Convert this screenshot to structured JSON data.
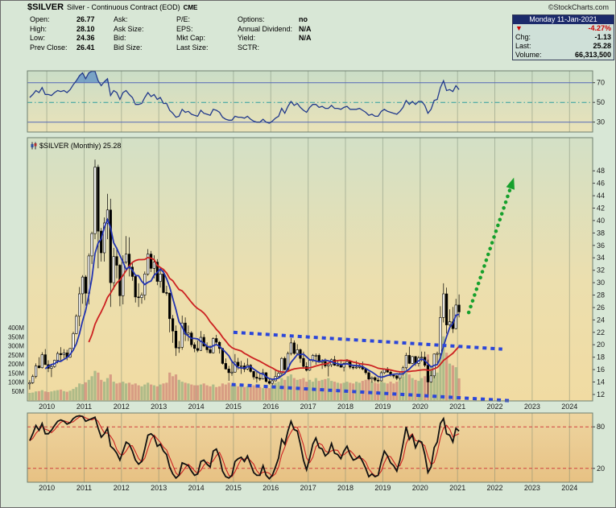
{
  "header": {
    "symbol": "$SILVER",
    "title": "Silver - Continuous Contract (EOD)",
    "exchange": "CME",
    "credit": "©StockCharts.com"
  },
  "quote_panel": {
    "columns": [
      {
        "rows": [
          {
            "label": "Open:",
            "value": "26.77"
          },
          {
            "label": "High:",
            "value": "28.10"
          },
          {
            "label": "Low:",
            "value": "24.36"
          },
          {
            "label": "Prev Close:",
            "value": "26.41"
          }
        ]
      },
      {
        "rows": [
          {
            "label": "Ask:",
            "value": ""
          },
          {
            "label": "Ask Size:",
            "value": ""
          },
          {
            "label": "Bid:",
            "value": ""
          },
          {
            "label": "Bid Size:",
            "value": ""
          }
        ]
      },
      {
        "rows": [
          {
            "label": "P/E:",
            "value": ""
          },
          {
            "label": "EPS:",
            "value": ""
          },
          {
            "label": "Mkt Cap:",
            "value": ""
          },
          {
            "label": "Last Size:",
            "value": ""
          }
        ]
      },
      {
        "rows": [
          {
            "label": "Options:",
            "value": "no"
          },
          {
            "label": "Annual Dividend:",
            "value": "N/A"
          },
          {
            "label": "Yield:",
            "value": "N/A"
          },
          {
            "label": "SCTR:",
            "value": ""
          }
        ]
      }
    ],
    "date": "Monday 11-Jan-2021",
    "direction_icon": "▼",
    "change_pct": "-4.27%",
    "chg_label": "Chg:",
    "chg_value": "-1.13",
    "last_label": "Last:",
    "last_value": "25.28",
    "volume_label": "Volume:",
    "volume_value": "66,313,500",
    "down_color": "#cc0000"
  },
  "chart_data": {
    "type": "candlestick",
    "symbol_label": "$SILVER (Monthly) 25.28",
    "months_start": "2009-07",
    "x_axis": {
      "tick_years": [
        2010,
        2011,
        2012,
        2013,
        2014,
        2015,
        2016,
        2017,
        2018,
        2019,
        2020,
        2021,
        2022,
        2023,
        2024
      ]
    },
    "price_axis": {
      "min": 12,
      "max": 48,
      "step": 2
    },
    "volume_axis_labels": [
      "400M",
      "350M",
      "300M",
      "250M",
      "200M",
      "150M",
      "100M",
      "50M"
    ],
    "ohlc": [
      [
        13.7,
        14.3,
        12.8,
        13.9
      ],
      [
        13.9,
        15.2,
        13.7,
        14.9
      ],
      [
        14.9,
        17.0,
        14.6,
        16.6
      ],
      [
        16.6,
        18.0,
        16.2,
        16.3
      ],
      [
        16.3,
        18.8,
        16.2,
        18.4
      ],
      [
        18.4,
        19.3,
        16.8,
        16.8
      ],
      [
        16.8,
        17.5,
        15.6,
        16.2
      ],
      [
        16.2,
        16.7,
        14.8,
        16.5
      ],
      [
        16.5,
        17.6,
        16.3,
        17.5
      ],
      [
        17.5,
        18.9,
        17.0,
        18.6
      ],
      [
        18.6,
        19.6,
        17.4,
        18.4
      ],
      [
        18.4,
        19.3,
        17.8,
        18.7
      ],
      [
        18.7,
        19.2,
        17.5,
        18.0
      ],
      [
        18.0,
        19.5,
        17.9,
        19.4
      ],
      [
        19.4,
        22.1,
        19.0,
        21.8
      ],
      [
        21.8,
        24.9,
        21.7,
        24.6
      ],
      [
        24.6,
        29.3,
        23.0,
        28.2
      ],
      [
        28.2,
        31.2,
        26.6,
        30.9
      ],
      [
        30.9,
        31.2,
        26.3,
        28.3
      ],
      [
        28.3,
        34.7,
        26.5,
        34.3
      ],
      [
        34.3,
        38.2,
        33.0,
        37.9
      ],
      [
        37.9,
        49.8,
        37.0,
        48.6
      ],
      [
        48.6,
        49.0,
        32.3,
        38.3
      ],
      [
        38.3,
        38.8,
        33.4,
        34.8
      ],
      [
        34.8,
        40.5,
        33.4,
        39.6
      ],
      [
        39.6,
        44.3,
        37.0,
        41.7
      ],
      [
        41.7,
        43.5,
        26.1,
        30.0
      ],
      [
        30.0,
        35.6,
        28.9,
        34.2
      ],
      [
        34.2,
        35.7,
        30.7,
        32.8
      ],
      [
        32.8,
        33.0,
        26.2,
        27.9
      ],
      [
        27.9,
        34.4,
        26.5,
        33.3
      ],
      [
        33.3,
        37.5,
        33.0,
        34.6
      ],
      [
        34.6,
        37.3,
        31.0,
        32.5
      ],
      [
        32.5,
        33.3,
        30.3,
        31.0
      ],
      [
        31.0,
        31.1,
        26.8,
        27.7
      ],
      [
        27.7,
        29.9,
        26.1,
        27.6
      ],
      [
        27.6,
        28.4,
        26.6,
        28.0
      ],
      [
        28.0,
        31.8,
        27.2,
        31.4
      ],
      [
        31.4,
        35.4,
        31.1,
        34.6
      ],
      [
        34.6,
        35.1,
        31.7,
        32.3
      ],
      [
        32.3,
        34.4,
        30.7,
        33.3
      ],
      [
        33.3,
        33.8,
        29.6,
        30.2
      ],
      [
        30.2,
        32.5,
        29.2,
        31.4
      ],
      [
        31.4,
        32.1,
        28.3,
        28.4
      ],
      [
        28.4,
        29.5,
        27.9,
        28.3
      ],
      [
        28.3,
        28.4,
        22.0,
        24.2
      ],
      [
        24.2,
        24.8,
        20.3,
        22.2
      ],
      [
        22.2,
        23.1,
        18.2,
        19.5
      ],
      [
        19.5,
        20.6,
        18.7,
        19.6
      ],
      [
        19.6,
        24.7,
        19.2,
        23.5
      ],
      [
        23.5,
        24.4,
        20.6,
        21.7
      ],
      [
        21.7,
        23.1,
        20.6,
        21.9
      ],
      [
        21.9,
        22.2,
        19.6,
        20.0
      ],
      [
        20.0,
        20.4,
        18.8,
        19.4
      ],
      [
        19.4,
        20.7,
        18.8,
        19.1
      ],
      [
        19.1,
        22.2,
        19.0,
        21.2
      ],
      [
        21.2,
        21.7,
        19.6,
        19.8
      ],
      [
        19.8,
        20.4,
        18.7,
        19.2
      ],
      [
        19.2,
        19.9,
        18.6,
        18.7
      ],
      [
        18.7,
        21.2,
        18.6,
        21.0
      ],
      [
        21.0,
        21.6,
        20.1,
        20.4
      ],
      [
        20.4,
        20.6,
        18.6,
        19.4
      ],
      [
        19.4,
        19.5,
        16.8,
        17.0
      ],
      [
        17.0,
        17.8,
        16.0,
        16.1
      ],
      [
        16.1,
        16.6,
        14.2,
        15.5
      ],
      [
        15.5,
        17.3,
        15.0,
        15.6
      ],
      [
        15.6,
        18.5,
        15.5,
        17.2
      ],
      [
        17.2,
        17.9,
        16.0,
        16.6
      ],
      [
        16.6,
        17.4,
        15.3,
        16.6
      ],
      [
        16.6,
        17.1,
        15.6,
        16.1
      ],
      [
        16.1,
        17.8,
        15.9,
        16.7
      ],
      [
        16.7,
        16.9,
        15.5,
        15.7
      ],
      [
        15.7,
        15.8,
        14.4,
        14.8
      ],
      [
        14.8,
        15.7,
        13.9,
        14.6
      ],
      [
        14.6,
        15.3,
        14.2,
        14.5
      ],
      [
        14.5,
        16.1,
        14.4,
        15.5
      ],
      [
        15.5,
        15.6,
        13.9,
        14.1
      ],
      [
        14.1,
        14.6,
        13.6,
        13.8
      ],
      [
        13.8,
        14.4,
        13.5,
        14.2
      ],
      [
        14.2,
        15.9,
        14.1,
        14.9
      ],
      [
        14.9,
        15.9,
        14.7,
        15.4
      ],
      [
        15.4,
        18.0,
        14.9,
        17.8
      ],
      [
        17.8,
        18.1,
        15.9,
        16.0
      ],
      [
        16.0,
        18.9,
        15.9,
        18.6
      ],
      [
        18.6,
        21.1,
        18.3,
        20.3
      ],
      [
        20.3,
        20.7,
        18.4,
        18.6
      ],
      [
        18.6,
        20.1,
        18.3,
        19.2
      ],
      [
        19.2,
        19.4,
        17.1,
        17.8
      ],
      [
        17.8,
        18.9,
        16.2,
        16.5
      ],
      [
        16.5,
        17.2,
        15.7,
        15.9
      ],
      [
        15.9,
        17.7,
        15.8,
        17.5
      ],
      [
        17.5,
        18.5,
        17.2,
        18.3
      ],
      [
        18.3,
        18.6,
        16.8,
        18.3
      ],
      [
        18.3,
        18.6,
        17.1,
        17.2
      ],
      [
        17.2,
        17.7,
        16.1,
        17.3
      ],
      [
        17.3,
        17.8,
        16.3,
        16.6
      ],
      [
        16.6,
        16.9,
        14.9,
        16.8
      ],
      [
        16.8,
        17.8,
        16.4,
        17.6
      ],
      [
        17.6,
        18.2,
        16.6,
        16.7
      ],
      [
        16.7,
        17.5,
        16.5,
        16.7
      ],
      [
        16.7,
        17.4,
        16.3,
        16.4
      ],
      [
        16.4,
        17.2,
        15.7,
        17.0
      ],
      [
        17.0,
        17.7,
        16.8,
        17.3
      ],
      [
        17.3,
        17.4,
        16.1,
        16.4
      ],
      [
        16.4,
        16.8,
        16.0,
        16.3
      ],
      [
        16.3,
        17.4,
        16.1,
        16.4
      ],
      [
        16.4,
        16.9,
        16.1,
        16.5
      ],
      [
        16.5,
        17.3,
        15.9,
        16.1
      ],
      [
        16.1,
        16.2,
        15.2,
        15.5
      ],
      [
        15.5,
        15.7,
        14.3,
        14.5
      ],
      [
        14.5,
        14.9,
        13.9,
        14.7
      ],
      [
        14.7,
        14.9,
        14.0,
        14.3
      ],
      [
        14.3,
        14.7,
        13.9,
        14.2
      ],
      [
        14.2,
        15.8,
        14.1,
        15.5
      ],
      [
        15.5,
        16.2,
        15.3,
        16.1
      ],
      [
        16.1,
        16.4,
        15.5,
        15.6
      ],
      [
        15.6,
        15.9,
        14.9,
        15.1
      ],
      [
        15.1,
        15.3,
        14.6,
        15.0
      ],
      [
        15.0,
        15.1,
        14.3,
        14.6
      ],
      [
        14.6,
        15.5,
        14.3,
        15.3
      ],
      [
        15.3,
        16.6,
        15.0,
        16.3
      ],
      [
        16.3,
        18.7,
        16.0,
        18.3
      ],
      [
        18.3,
        19.7,
        16.9,
        17.0
      ],
      [
        17.0,
        18.2,
        16.9,
        18.1
      ],
      [
        18.1,
        18.2,
        16.6,
        17.0
      ],
      [
        17.0,
        18.2,
        16.5,
        17.9
      ],
      [
        17.9,
        18.9,
        17.3,
        18.0
      ],
      [
        18.0,
        18.9,
        16.4,
        16.7
      ],
      [
        16.7,
        17.6,
        11.6,
        14.0
      ],
      [
        14.0,
        15.8,
        13.9,
        15.0
      ],
      [
        15.0,
        18.6,
        14.6,
        18.5
      ],
      [
        18.5,
        18.9,
        17.1,
        18.6
      ],
      [
        18.6,
        26.2,
        17.8,
        24.4
      ],
      [
        24.4,
        29.9,
        23.6,
        28.2
      ],
      [
        28.2,
        29.2,
        21.8,
        23.2
      ],
      [
        23.2,
        25.7,
        22.6,
        23.7
      ],
      [
        23.7,
        26.1,
        21.9,
        22.6
      ],
      [
        22.6,
        27.4,
        22.5,
        26.4
      ],
      [
        26.4,
        28.1,
        24.4,
        25.3
      ]
    ],
    "volumes_millions": [
      40,
      42,
      48,
      50,
      55,
      48,
      45,
      48,
      52,
      55,
      58,
      50,
      46,
      52,
      62,
      72,
      92,
      88,
      98,
      112,
      132,
      162,
      152,
      112,
      102,
      122,
      142,
      102,
      92,
      96,
      102,
      92,
      96,
      86,
      92,
      82,
      76,
      86,
      96,
      86,
      82,
      76,
      86,
      92,
      96,
      152,
      132,
      142,
      112,
      102,
      96,
      92,
      86,
      82,
      82,
      86,
      92,
      82,
      76,
      86,
      72,
      76,
      92,
      86,
      96,
      82,
      86,
      76,
      82,
      72,
      76,
      72,
      82,
      86,
      72,
      66,
      72,
      66,
      82,
      96,
      102,
      122,
      112,
      132,
      142,
      122,
      112,
      116,
      122,
      102,
      112,
      102,
      122,
      106,
      112,
      116,
      122,
      106,
      102,
      96,
      92,
      96,
      102,
      96,
      92,
      102,
      96,
      106,
      112,
      116,
      102,
      96,
      92,
      102,
      96,
      92,
      102,
      92,
      102,
      112,
      132,
      152,
      142,
      122,
      112,
      106,
      122,
      132,
      252,
      182,
      162,
      152,
      282,
      352,
      262,
      202,
      192,
      182,
      120
    ],
    "overlays": {
      "fast_ma": {
        "period": 6,
        "color": "#2233b0"
      },
      "slow_ma": {
        "period": 20,
        "color": "#cc2222"
      }
    },
    "indicators": {
      "rsi": {
        "levels": [
          70,
          50,
          30
        ],
        "line_color": "#223a8c",
        "band_fill": "#5e8fc4",
        "values": [
          55,
          58,
          62,
          60,
          65,
          58,
          58,
          57,
          60,
          62,
          61,
          62,
          60,
          63,
          68,
          72,
          77,
          80,
          74,
          80,
          82,
          87,
          72,
          67,
          71,
          74,
          57,
          62,
          60,
          53,
          60,
          62,
          58,
          55,
          48,
          48,
          49,
          55,
          60,
          56,
          58,
          53,
          55,
          49,
          49,
          42,
          39,
          35,
          36,
          43,
          40,
          41,
          38,
          37,
          36,
          42,
          39,
          38,
          37,
          43,
          42,
          40,
          35,
          33,
          32,
          32,
          36,
          35,
          35,
          34,
          36,
          33,
          31,
          30,
          30,
          33,
          30,
          29,
          31,
          34,
          36,
          44,
          39,
          46,
          51,
          47,
          49,
          45,
          42,
          40,
          45,
          48,
          48,
          45,
          46,
          44,
          44,
          47,
          44,
          44,
          43,
          45,
          46,
          43,
          43,
          43,
          44,
          42,
          40,
          37,
          38,
          36,
          36,
          41,
          43,
          41,
          40,
          39,
          38,
          41,
          45,
          52,
          48,
          51,
          48,
          51,
          51,
          47,
          39,
          43,
          52,
          53,
          65,
          72,
          62,
          63,
          61,
          67,
          63
        ]
      },
      "stoch": {
        "levels": [
          80,
          20
        ],
        "k_color": "#111111",
        "d_color": "#cc2222",
        "level_color": "#d04040",
        "k": [
          60,
          70,
          82,
          75,
          85,
          70,
          70,
          75,
          82,
          88,
          90,
          88,
          84,
          86,
          92,
          95,
          96,
          95,
          88,
          90,
          92,
          94,
          78,
          65,
          70,
          78,
          52,
          48,
          42,
          32,
          45,
          58,
          55,
          45,
          32,
          26,
          30,
          48,
          68,
          70,
          66,
          52,
          55,
          45,
          40,
          22,
          12,
          6,
          10,
          28,
          26,
          24,
          16,
          10,
          12,
          30,
          32,
          26,
          22,
          45,
          48,
          36,
          16,
          8,
          6,
          10,
          30,
          34,
          36,
          30,
          38,
          26,
          14,
          10,
          10,
          24,
          10,
          5,
          10,
          22,
          35,
          62,
          55,
          74,
          88,
          76,
          74,
          55,
          32,
          18,
          35,
          55,
          64,
          50,
          48,
          38,
          42,
          56,
          42,
          40,
          34,
          45,
          52,
          40,
          32,
          34,
          38,
          30,
          20,
          8,
          12,
          8,
          10,
          30,
          45,
          38,
          28,
          24,
          16,
          32,
          55,
          80,
          62,
          68,
          50,
          60,
          58,
          40,
          14,
          22,
          50,
          58,
          85,
          92,
          70,
          68,
          58,
          78,
          74
        ]
      }
    },
    "annotations": {
      "trendline_color": "#2b46d9",
      "trendlines": [
        {
          "x1_year": 2015.0,
          "price1": 22.0,
          "x2_year": 2022.2,
          "price2": 19.3
        },
        {
          "x1_year": 2014.95,
          "price1": 13.6,
          "x2_year": 2022.4,
          "price2": 11.0
        }
      ],
      "arrow": {
        "x1_year": 2021.3,
        "price1": 25.2,
        "x2_year": 2022.45,
        "price2": 45.8,
        "color": "#16a02c"
      }
    },
    "candle_up_fill": "#f4f4f4",
    "candle_down_fill": "#000000",
    "candle_stroke": "#000000",
    "volume_up_color": "rgba(120,160,115,0.55)",
    "volume_down_color": "rgba(195,105,105,0.55)"
  }
}
